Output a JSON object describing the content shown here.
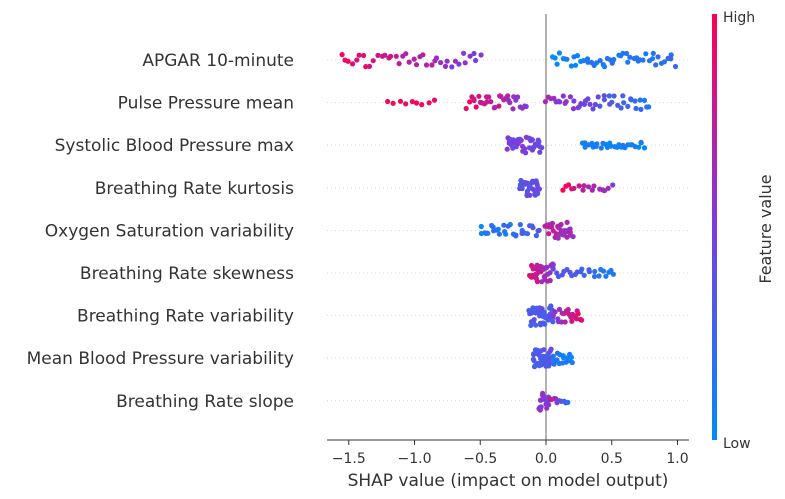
{
  "chart_data": {
    "type": "scatter",
    "subtype": "shap-beeswarm",
    "xlabel": "SHAP value (impact on model output)",
    "xlim": [
      -1.65,
      1.07
    ],
    "xticks": [
      -1.5,
      -1.0,
      -0.5,
      0.0,
      0.5,
      1.0
    ],
    "xtick_labels": [
      "−1.5",
      "−1.0",
      "−0.5",
      "0.0",
      "0.5",
      "1.0"
    ],
    "colorbar": {
      "label": "Feature value",
      "high": "High",
      "low": "Low",
      "high_color": "#ff0052",
      "low_color": "#008bfb"
    },
    "features": [
      {
        "name": "APGAR 10-minute",
        "clusters": [
          {
            "min": -1.55,
            "max": -0.5,
            "n": 40,
            "c0": 0.95,
            "c1": 0.5,
            "spread": 7
          },
          {
            "min": 0.05,
            "max": 0.98,
            "n": 48,
            "c0": 0.05,
            "c1": 0.2,
            "spread": 7
          }
        ]
      },
      {
        "name": "Pulse Pressure mean",
        "clusters": [
          {
            "min": -1.2,
            "max": -0.85,
            "n": 9,
            "c0": 0.95,
            "c1": 0.95,
            "spread": 3
          },
          {
            "min": -0.6,
            "max": -0.15,
            "n": 32,
            "c0": 0.92,
            "c1": 0.55,
            "spread": 7
          },
          {
            "min": 0.0,
            "max": 0.78,
            "n": 44,
            "c0": 0.65,
            "c1": 0.15,
            "spread": 7
          }
        ]
      },
      {
        "name": "Systolic Blood Pressure max",
        "clusters": [
          {
            "min": -0.3,
            "max": -0.03,
            "n": 38,
            "c0": 0.5,
            "c1": 0.45,
            "spread": 8
          },
          {
            "min": 0.27,
            "max": 0.75,
            "n": 28,
            "c0": 0.1,
            "c1": 0.05,
            "spread": 3
          }
        ]
      },
      {
        "name": "Breathing Rate kurtosis",
        "clusters": [
          {
            "min": -0.2,
            "max": -0.05,
            "n": 34,
            "c0": 0.35,
            "c1": 0.4,
            "spread": 8
          },
          {
            "min": 0.12,
            "max": 0.5,
            "n": 16,
            "c0": 0.95,
            "c1": 0.55,
            "spread": 3
          }
        ]
      },
      {
        "name": "Oxygen Saturation variability",
        "clusters": [
          {
            "min": -0.5,
            "max": -0.05,
            "n": 30,
            "c0": 0.08,
            "c1": 0.3,
            "spread": 6
          },
          {
            "min": 0.0,
            "max": 0.2,
            "n": 30,
            "c0": 0.75,
            "c1": 0.6,
            "spread": 8
          }
        ]
      },
      {
        "name": "Breathing Rate skewness",
        "clusters": [
          {
            "min": -0.12,
            "max": 0.05,
            "n": 38,
            "c0": 0.85,
            "c1": 0.6,
            "spread": 9
          },
          {
            "min": 0.06,
            "max": 0.52,
            "n": 24,
            "c0": 0.4,
            "c1": 0.1,
            "spread": 4
          }
        ]
      },
      {
        "name": "Breathing Rate variability",
        "clusters": [
          {
            "min": -0.13,
            "max": 0.05,
            "n": 44,
            "c0": 0.3,
            "c1": 0.35,
            "spread": 10
          },
          {
            "min": 0.06,
            "max": 0.28,
            "n": 24,
            "c0": 0.55,
            "c1": 0.9,
            "spread": 7
          }
        ]
      },
      {
        "name": "Mean Blood Pressure variability",
        "clusters": [
          {
            "min": -0.1,
            "max": 0.05,
            "n": 40,
            "c0": 0.3,
            "c1": 0.35,
            "spread": 9
          },
          {
            "min": 0.05,
            "max": 0.2,
            "n": 18,
            "c0": 0.2,
            "c1": 0.05,
            "spread": 6
          }
        ]
      },
      {
        "name": "Breathing Rate slope",
        "clusters": [
          {
            "min": -0.05,
            "max": 0.03,
            "n": 20,
            "c0": 0.6,
            "c1": 0.5,
            "spread": 10
          },
          {
            "min": 0.03,
            "max": 0.16,
            "n": 10,
            "c0": 0.85,
            "c1": 0.15,
            "spread": 3
          }
        ]
      }
    ]
  }
}
